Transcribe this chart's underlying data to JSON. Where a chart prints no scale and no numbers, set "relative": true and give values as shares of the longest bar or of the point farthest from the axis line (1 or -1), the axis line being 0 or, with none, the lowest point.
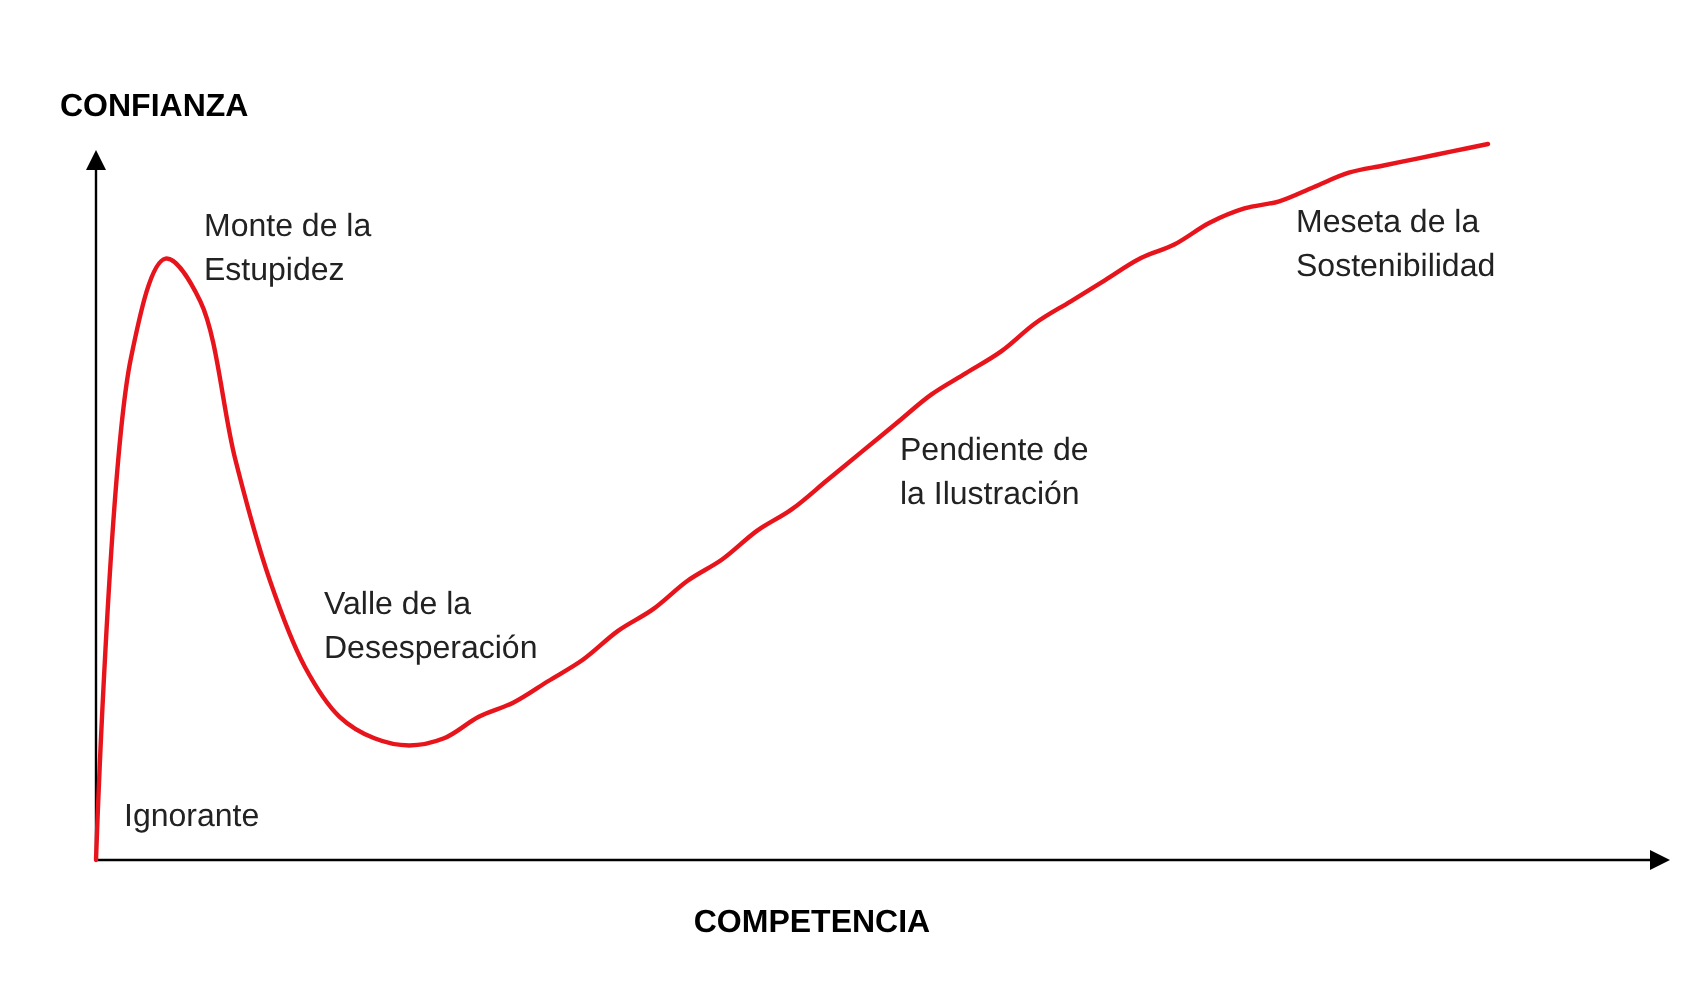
{
  "chart_data": {
    "type": "line",
    "relative": true,
    "xlabel": "COMPETENCIA",
    "ylabel": "CONFIANZA",
    "categories": [
      null,
      null,
      null,
      null,
      null,
      null,
      null,
      null,
      null,
      null,
      null,
      null,
      null,
      null,
      null,
      null,
      null,
      null,
      null,
      null,
      null,
      null,
      null,
      null,
      null,
      null,
      null,
      null,
      null,
      null,
      null,
      null,
      null,
      null,
      null,
      null,
      null,
      null,
      null,
      null,
      null
    ],
    "series": [
      {
        "color": "#e8141c",
        "values": [
          0,
          0.7,
          0.84,
          0.78,
          0.56,
          0.39,
          0.27,
          0.2,
          0.17,
          0.16,
          0.17,
          0.2,
          0.22,
          0.25,
          0.28,
          0.32,
          0.35,
          0.39,
          0.42,
          0.46,
          0.49,
          0.53,
          0.57,
          0.61,
          0.65,
          0.68,
          0.71,
          0.75,
          0.78,
          0.81,
          0.84,
          0.86,
          0.89,
          0.91,
          0.92,
          0.94,
          0.96,
          0.97,
          0.98,
          0.99,
          1
        ]
      }
    ],
    "annotations": [
      "Monte de la\nEstupidez",
      "Valle de la\nDesesperación",
      "Ignorante",
      "Pendiente de\nla Ilustración",
      "Meseta de la\nSostenibilidad"
    ],
    "marker": "none",
    "line_style": "solid",
    "grid": false
  }
}
